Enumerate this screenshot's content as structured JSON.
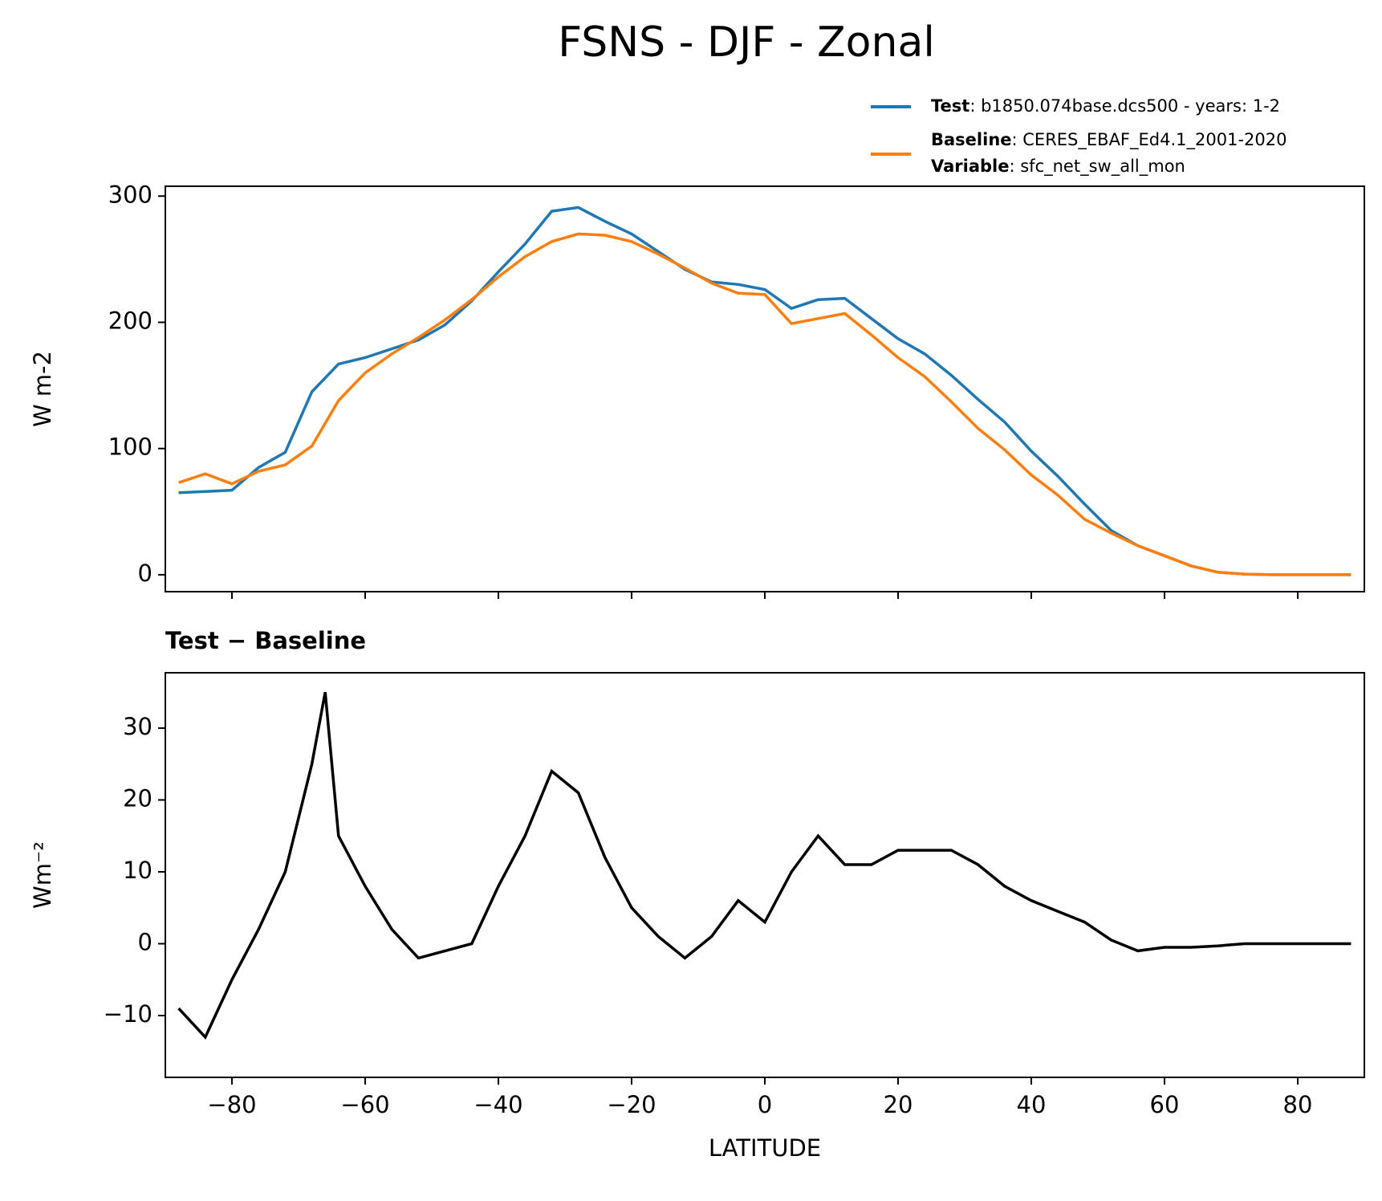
{
  "title": "FSNS - DJF - Zonal",
  "chart_data": [
    {
      "type": "line",
      "ylabel": "W m-2",
      "x": [
        -88,
        -84,
        -80,
        -76,
        -72,
        -68,
        -64,
        -60,
        -56,
        -52,
        -48,
        -44,
        -40,
        -36,
        -32,
        -28,
        -24,
        -20,
        -16,
        -12,
        -8,
        -4,
        0,
        4,
        8,
        12,
        16,
        20,
        24,
        28,
        32,
        36,
        40,
        44,
        48,
        52,
        56,
        60,
        64,
        68,
        72,
        76,
        80,
        84,
        88
      ],
      "series": [
        {
          "name": "Test",
          "description": ": b1850.074base.dcs500 - years: 1-2",
          "color": "#1f77b4",
          "values": [
            65,
            66,
            67,
            85,
            97,
            145,
            167,
            172,
            179,
            186,
            198,
            217,
            240,
            262,
            288,
            291,
            280,
            270,
            256,
            242,
            232,
            230,
            226,
            211,
            218,
            219,
            203,
            187,
            175,
            158,
            139,
            121,
            98,
            78,
            56,
            35,
            23,
            15,
            7,
            2,
            0.5,
            0,
            0,
            0,
            0
          ]
        },
        {
          "name": "Baseline",
          "description": ": CERES_EBAF_Ed4.1_2001-2020",
          "color": "#ff7f0e",
          "values": [
            73,
            80,
            72,
            82,
            87,
            102,
            138,
            160,
            175,
            188,
            202,
            218,
            236,
            252,
            264,
            270,
            269,
            264,
            254,
            243,
            231,
            223,
            222,
            199,
            203,
            207,
            190,
            172,
            157,
            137,
            116,
            99,
            79,
            63,
            44,
            33,
            23,
            15,
            7,
            2,
            0.5,
            0,
            0,
            0,
            0
          ]
        }
      ],
      "legend_extra": {
        "label": "Variable",
        "text": ": sfc_net_sw_all_mon"
      },
      "xlim": [
        -90,
        90
      ],
      "xticks": [
        -80,
        -60,
        -40,
        -20,
        0,
        20,
        40,
        60,
        80
      ],
      "ylim": [
        -13.4,
        307.8
      ],
      "yticks": [
        0,
        100,
        200,
        300
      ]
    },
    {
      "type": "line",
      "title": "Test − Baseline",
      "ylabel": "Wm⁻²",
      "xlabel": "LATITUDE",
      "x": [
        -88,
        -84,
        -80,
        -76,
        -72,
        -68,
        -66,
        -64,
        -60,
        -56,
        -52,
        -48,
        -44,
        -40,
        -36,
        -32,
        -28,
        -24,
        -20,
        -16,
        -12,
        -8,
        -4,
        0,
        4,
        8,
        12,
        16,
        20,
        24,
        28,
        32,
        36,
        40,
        44,
        48,
        52,
        56,
        60,
        64,
        68,
        72,
        76,
        80,
        84,
        88
      ],
      "series": [
        {
          "color": "#000000",
          "values": [
            -9,
            -13,
            -5,
            2,
            10,
            25,
            35,
            15,
            8,
            2,
            -2,
            -1,
            0,
            8,
            15,
            24,
            21,
            12,
            5,
            1,
            -2,
            1,
            6,
            3,
            10,
            15,
            11,
            11,
            13,
            13,
            13,
            11,
            8,
            6,
            4.5,
            3,
            0.5,
            -1,
            -0.5,
            -0.5,
            -0.3,
            0,
            0,
            0,
            0,
            0
          ]
        }
      ],
      "xlim": [
        -90,
        90
      ],
      "xticks": [
        {
          "value": -80,
          "label": "−80"
        },
        {
          "value": -60,
          "label": "−60"
        },
        {
          "value": -40,
          "label": "−40"
        },
        {
          "value": -20,
          "label": "−20"
        },
        0,
        20,
        40,
        60,
        80
      ],
      "ylim": [
        -18.6,
        37.7
      ],
      "yticks": [
        {
          "value": -10,
          "label": "−10"
        },
        0,
        10,
        20,
        30
      ]
    }
  ]
}
